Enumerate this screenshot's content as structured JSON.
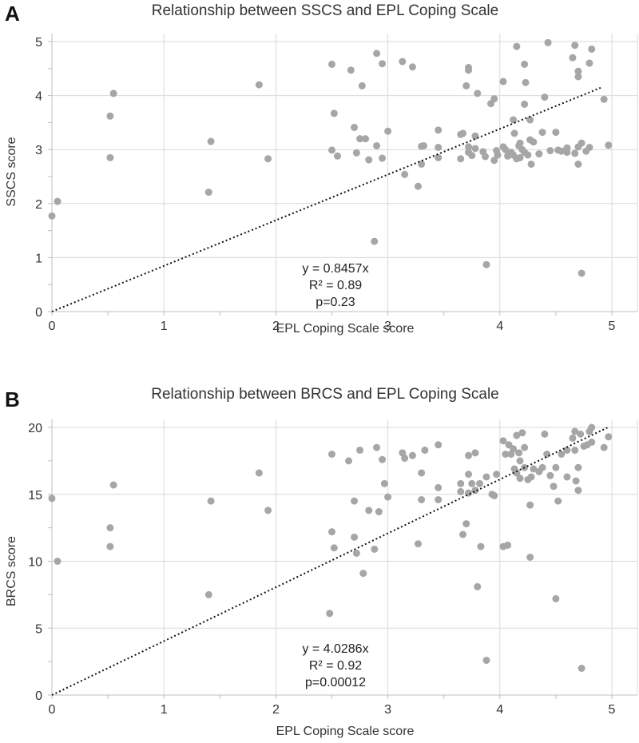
{
  "chart_data": [
    {
      "type": "scatter",
      "panel": "A",
      "title": "Relationship between SSCS and EPL Coping Scale",
      "xlabel": "EPL Coping Scale score",
      "ylabel": "SSCS score",
      "xlim": [
        0,
        5
      ],
      "ylim": [
        0,
        5
      ],
      "xticks": [
        0,
        1,
        2,
        3,
        4,
        5
      ],
      "yticks": [
        0,
        1,
        2,
        3,
        4,
        5
      ],
      "grid": true,
      "trendline": {
        "slope": 0.8457,
        "x_range": [
          0,
          4.9
        ]
      },
      "annotations": [
        "y = 0.8457x",
        "R² = 0.89",
        "p=0.23"
      ],
      "points": [
        [
          0.0,
          1.77
        ],
        [
          0.05,
          2.04
        ],
        [
          0.52,
          3.62
        ],
        [
          0.52,
          2.85
        ],
        [
          0.55,
          4.04
        ],
        [
          1.4,
          2.21
        ],
        [
          1.42,
          3.15
        ],
        [
          1.85,
          4.2
        ],
        [
          1.93,
          2.83
        ],
        [
          2.5,
          4.58
        ],
        [
          2.5,
          2.99
        ],
        [
          2.52,
          3.67
        ],
        [
          2.55,
          2.88
        ],
        [
          2.67,
          4.47
        ],
        [
          2.7,
          3.41
        ],
        [
          2.72,
          2.94
        ],
        [
          2.75,
          3.2
        ],
        [
          2.77,
          4.18
        ],
        [
          2.8,
          3.2
        ],
        [
          2.83,
          2.81
        ],
        [
          2.88,
          1.3
        ],
        [
          2.9,
          3.07
        ],
        [
          2.9,
          4.78
        ],
        [
          2.95,
          2.84
        ],
        [
          2.95,
          4.59
        ],
        [
          3.0,
          3.34
        ],
        [
          3.13,
          4.63
        ],
        [
          3.15,
          2.54
        ],
        [
          3.22,
          4.53
        ],
        [
          3.27,
          2.32
        ],
        [
          3.3,
          3.06
        ],
        [
          3.32,
          3.07
        ],
        [
          3.3,
          2.73
        ],
        [
          3.45,
          3.36
        ],
        [
          3.45,
          3.04
        ],
        [
          3.45,
          2.85
        ],
        [
          3.65,
          2.83
        ],
        [
          3.65,
          3.28
        ],
        [
          3.67,
          3.3
        ],
        [
          3.7,
          4.18
        ],
        [
          3.72,
          4.52
        ],
        [
          3.72,
          4.47
        ],
        [
          3.72,
          3.05
        ],
        [
          3.72,
          2.95
        ],
        [
          3.75,
          2.89
        ],
        [
          3.78,
          3.25
        ],
        [
          3.78,
          3.02
        ],
        [
          3.8,
          4.04
        ],
        [
          3.85,
          2.96
        ],
        [
          3.87,
          2.87
        ],
        [
          3.88,
          0.87
        ],
        [
          3.92,
          3.85
        ],
        [
          3.95,
          2.8
        ],
        [
          3.95,
          3.94
        ],
        [
          3.97,
          2.98
        ],
        [
          3.98,
          2.9
        ],
        [
          4.03,
          4.26
        ],
        [
          4.03,
          3.05
        ],
        [
          4.05,
          3.0
        ],
        [
          4.07,
          2.88
        ],
        [
          4.1,
          2.95
        ],
        [
          4.12,
          3.55
        ],
        [
          4.12,
          2.9
        ],
        [
          4.13,
          3.3
        ],
        [
          4.15,
          4.91
        ],
        [
          4.15,
          2.83
        ],
        [
          4.17,
          3.07
        ],
        [
          4.18,
          2.85
        ],
        [
          4.18,
          3.12
        ],
        [
          4.2,
          3.0
        ],
        [
          4.22,
          4.58
        ],
        [
          4.23,
          4.24
        ],
        [
          4.22,
          3.84
        ],
        [
          4.22,
          2.95
        ],
        [
          4.25,
          2.9
        ],
        [
          4.27,
          3.55
        ],
        [
          4.27,
          3.18
        ],
        [
          4.28,
          2.73
        ],
        [
          4.3,
          3.14
        ],
        [
          4.35,
          2.92
        ],
        [
          4.38,
          3.32
        ],
        [
          4.4,
          3.97
        ],
        [
          4.43,
          4.98
        ],
        [
          4.45,
          2.98
        ],
        [
          4.5,
          3.32
        ],
        [
          4.52,
          2.99
        ],
        [
          4.55,
          2.97
        ],
        [
          4.6,
          3.03
        ],
        [
          4.6,
          2.95
        ],
        [
          4.65,
          4.7
        ],
        [
          4.67,
          4.93
        ],
        [
          4.67,
          2.93
        ],
        [
          4.7,
          4.45
        ],
        [
          4.7,
          4.35
        ],
        [
          4.7,
          3.05
        ],
        [
          4.7,
          2.73
        ],
        [
          4.73,
          0.71
        ],
        [
          4.73,
          3.12
        ],
        [
          4.77,
          2.97
        ],
        [
          4.8,
          4.6
        ],
        [
          4.8,
          3.04
        ],
        [
          4.82,
          4.86
        ],
        [
          4.93,
          3.93
        ],
        [
          4.97,
          3.08
        ]
      ]
    },
    {
      "type": "scatter",
      "panel": "B",
      "title": "Relationship between BRCS and EPL Coping Scale",
      "xlabel": "EPL Coping Scale score",
      "ylabel": "BRCS score",
      "xlim": [
        0,
        5
      ],
      "ylim": [
        0,
        20
      ],
      "xticks": [
        0,
        1,
        2,
        3,
        4,
        5
      ],
      "yticks": [
        0,
        5,
        10,
        15,
        20
      ],
      "grid": true,
      "trendline": {
        "slope": 4.0286,
        "x_range": [
          0,
          4.96
        ]
      },
      "annotations": [
        "y = 4.0286x",
        "R² = 0.92",
        "p=0.00012"
      ],
      "points": [
        [
          0.0,
          14.7
        ],
        [
          0.05,
          10.0
        ],
        [
          0.52,
          12.5
        ],
        [
          0.52,
          11.1
        ],
        [
          0.55,
          15.7
        ],
        [
          1.4,
          7.5
        ],
        [
          1.42,
          14.5
        ],
        [
          1.85,
          16.6
        ],
        [
          1.93,
          13.8
        ],
        [
          2.48,
          6.1
        ],
        [
          2.5,
          18.0
        ],
        [
          2.5,
          12.2
        ],
        [
          2.52,
          11.0
        ],
        [
          2.65,
          17.5
        ],
        [
          2.7,
          14.5
        ],
        [
          2.7,
          11.8
        ],
        [
          2.72,
          10.6
        ],
        [
          2.75,
          18.3
        ],
        [
          2.78,
          9.1
        ],
        [
          2.83,
          13.8
        ],
        [
          2.88,
          10.9
        ],
        [
          2.9,
          18.5
        ],
        [
          2.92,
          13.7
        ],
        [
          2.95,
          17.6
        ],
        [
          2.97,
          15.8
        ],
        [
          3.0,
          14.8
        ],
        [
          3.13,
          18.1
        ],
        [
          3.15,
          17.7
        ],
        [
          3.22,
          17.9
        ],
        [
          3.27,
          11.3
        ],
        [
          3.3,
          16.6
        ],
        [
          3.3,
          14.6
        ],
        [
          3.33,
          18.3
        ],
        [
          3.45,
          18.7
        ],
        [
          3.45,
          15.5
        ],
        [
          3.45,
          14.6
        ],
        [
          3.65,
          15.8
        ],
        [
          3.65,
          15.2
        ],
        [
          3.67,
          12.0
        ],
        [
          3.7,
          12.8
        ],
        [
          3.72,
          17.9
        ],
        [
          3.72,
          16.5
        ],
        [
          3.72,
          15.1
        ],
        [
          3.75,
          15.8
        ],
        [
          3.78,
          18.1
        ],
        [
          3.78,
          15.3
        ],
        [
          3.8,
          8.1
        ],
        [
          3.82,
          15.8
        ],
        [
          3.83,
          11.1
        ],
        [
          3.88,
          2.6
        ],
        [
          3.88,
          16.3
        ],
        [
          3.93,
          15.0
        ],
        [
          3.95,
          14.9
        ],
        [
          3.97,
          16.5
        ],
        [
          4.03,
          19.0
        ],
        [
          4.03,
          11.1
        ],
        [
          4.05,
          18.0
        ],
        [
          4.07,
          11.2
        ],
        [
          4.08,
          18.7
        ],
        [
          4.1,
          18.0
        ],
        [
          4.12,
          18.4
        ],
        [
          4.13,
          16.9
        ],
        [
          4.15,
          19.4
        ],
        [
          4.15,
          16.6
        ],
        [
          4.17,
          18.1
        ],
        [
          4.18,
          17.5
        ],
        [
          4.18,
          16.2
        ],
        [
          4.2,
          19.6
        ],
        [
          4.22,
          18.5
        ],
        [
          4.22,
          17.0
        ],
        [
          4.25,
          16.1
        ],
        [
          4.27,
          14.2
        ],
        [
          4.27,
          10.3
        ],
        [
          4.28,
          16.3
        ],
        [
          4.3,
          16.9
        ],
        [
          4.35,
          16.7
        ],
        [
          4.38,
          17.0
        ],
        [
          4.4,
          19.5
        ],
        [
          4.42,
          18.0
        ],
        [
          4.45,
          16.4
        ],
        [
          4.48,
          15.6
        ],
        [
          4.5,
          7.2
        ],
        [
          4.5,
          17.0
        ],
        [
          4.52,
          14.5
        ],
        [
          4.55,
          18.0
        ],
        [
          4.6,
          16.3
        ],
        [
          4.6,
          18.3
        ],
        [
          4.65,
          19.2
        ],
        [
          4.67,
          19.7
        ],
        [
          4.67,
          18.3
        ],
        [
          4.68,
          16.0
        ],
        [
          4.7,
          15.3
        ],
        [
          4.7,
          17.0
        ],
        [
          4.72,
          19.5
        ],
        [
          4.73,
          2.0
        ],
        [
          4.75,
          18.6
        ],
        [
          4.78,
          18.7
        ],
        [
          4.8,
          19.7
        ],
        [
          4.82,
          20.0
        ],
        [
          4.82,
          18.9
        ],
        [
          4.93,
          18.5
        ],
        [
          4.97,
          19.3
        ]
      ]
    }
  ]
}
